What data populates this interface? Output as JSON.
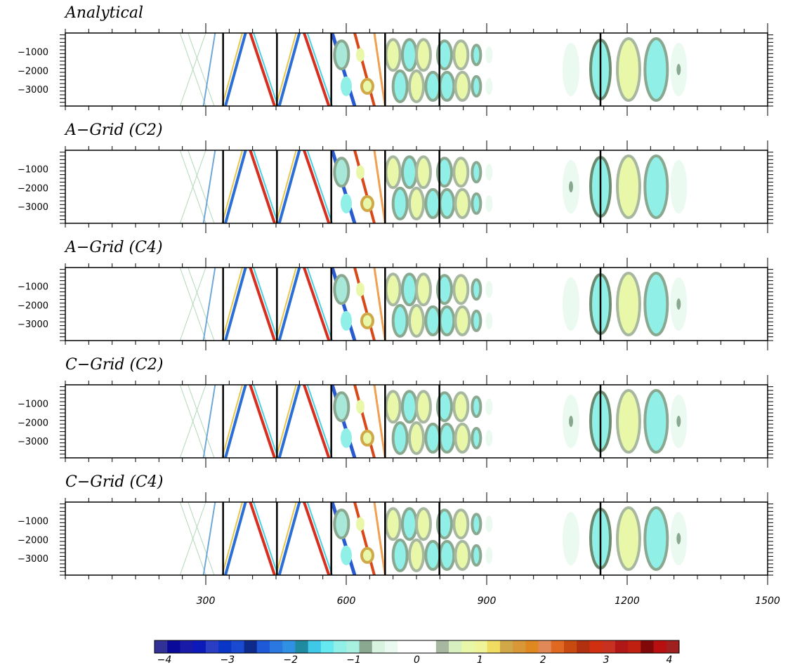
{
  "chart_data": {
    "type": "heatmap",
    "x_ticks": [
      300,
      600,
      900,
      1200,
      1500
    ],
    "x_range": [
      0,
      1500
    ],
    "y_ticks": [
      -1000,
      -2000,
      -3000
    ],
    "y_range": [
      -3900,
      0
    ],
    "segment_boundaries_x": [
      337,
      452,
      568,
      683,
      799,
      1143
    ],
    "panels": [
      {
        "title": "Analytical",
        "feature_amplitude": 1.0
      },
      {
        "title": "A−Grid (C2)",
        "feature_amplitude": 1.0
      },
      {
        "title": "A−Grid (C4)",
        "feature_amplitude": 1.0
      },
      {
        "title": "C−Grid (C2)",
        "feature_amplitude": 1.0
      },
      {
        "title": "C−Grid (C4)",
        "feature_amplitude": 1.0
      }
    ],
    "colorbar": {
      "min": -4,
      "max": 4,
      "tick_values": [
        -4,
        -3,
        -2,
        -1,
        0,
        1,
        2,
        3,
        4
      ],
      "tick_labels": [
        "−4",
        "−3",
        "−2",
        "−1",
        "0",
        "1",
        "2",
        "3",
        "4"
      ],
      "colors": [
        "#323296",
        "#0a0a9a",
        "#1a1aa8",
        "#0b1ab8",
        "#2a3ec4",
        "#0a36c8",
        "#1a4ad0",
        "#0e2a8a",
        "#1e5ad8",
        "#2a78e0",
        "#3090e4",
        "#1f8aa0",
        "#40c8e8",
        "#66e8f0",
        "#90f0e8",
        "#a8f0e0",
        "#8aa890",
        "#d8f4e0",
        "#eafaf0",
        "#ffffff",
        "#ffffff",
        "#ffffff",
        "#a8b8a0",
        "#d8f0c0",
        "#e8f8a8",
        "#f0f498",
        "#f0dc60",
        "#d0a848",
        "#d89838",
        "#e08820",
        "#e08858",
        "#e06820",
        "#c84a10",
        "#b03010",
        "#d03010",
        "#c83020",
        "#b01818",
        "#c02010",
        "#800808",
        "#b81010",
        "#a02020"
      ]
    }
  }
}
